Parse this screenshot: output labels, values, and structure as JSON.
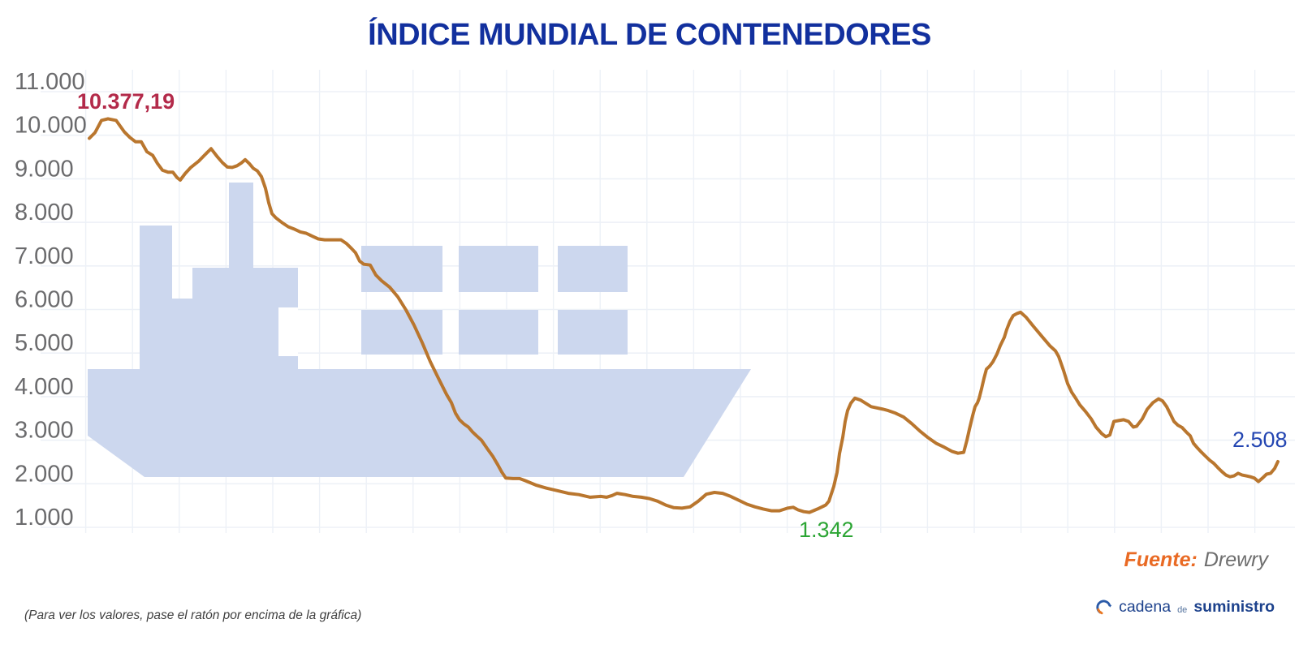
{
  "title": "ÍNDICE MUNDIAL DE CONTENEDORES",
  "footnote": "(Para ver los valores, pase el ratón por encima de la gráfica)",
  "source": {
    "label": "Fuente:",
    "value": "Drewry"
  },
  "logo": {
    "part1": "cadena",
    "part2": "de",
    "part3": "suministro",
    "icon": "circular-arrows-icon"
  },
  "colors": {
    "title_blue": "#12309e",
    "line": "#b9762e",
    "watermark_ship": "#ccd7ee",
    "grid": "#edf1f7",
    "axis_text": "#6b6b6d",
    "max_label_red": "#b32a4a",
    "min_label_green": "#2ca534",
    "last_label_blue": "#2446b2",
    "source_orange": "#e96a24",
    "logo_blue": "#1c418c",
    "background": "#ffffff"
  },
  "chart_data": {
    "type": "line",
    "title": "ÍNDICE MUNDIAL DE CONTENEDORES",
    "series_name": "Índice mundial de contenedores (WCI, Drewry)",
    "xlabel": "",
    "ylabel": "",
    "x_axis_note": "eje temporal semanal sin etiquetas visibles",
    "grid": true,
    "legend": "none",
    "ylim": [
      1000,
      11000
    ],
    "y_ticks": [
      {
        "label": "11.000",
        "value": 11000
      },
      {
        "label": "10.000",
        "value": 10000
      },
      {
        "label": "9.000",
        "value": 9000
      },
      {
        "label": "8.000",
        "value": 8000
      },
      {
        "label": "7.000",
        "value": 7000
      },
      {
        "label": "6.000",
        "value": 6000
      },
      {
        "label": "5.000",
        "value": 5000
      },
      {
        "label": "4.000",
        "value": 4000
      },
      {
        "label": "3.000",
        "value": 3000
      },
      {
        "label": "2.000",
        "value": 2000
      },
      {
        "label": "1.000",
        "value": 1000
      }
    ],
    "annotations": {
      "max": {
        "label": "10.377,19",
        "value": 10377.19
      },
      "min": {
        "label": "1.342",
        "value": 1342
      },
      "last": {
        "label": "2.508",
        "value": 2508
      }
    },
    "watermark": "silueta de barco portacontenedores",
    "points": [
      [
        0,
        9930
      ],
      [
        7,
        10060
      ],
      [
        15,
        10340
      ],
      [
        23,
        10377.19
      ],
      [
        33,
        10340
      ],
      [
        43,
        10080
      ],
      [
        50,
        9950
      ],
      [
        57,
        9850
      ],
      [
        64,
        9850
      ],
      [
        71,
        9620
      ],
      [
        78,
        9540
      ],
      [
        84,
        9350
      ],
      [
        90,
        9200
      ],
      [
        97,
        9150
      ],
      [
        103,
        9150
      ],
      [
        108,
        9030
      ],
      [
        112,
        8970
      ],
      [
        118,
        9120
      ],
      [
        125,
        9260
      ],
      [
        135,
        9410
      ],
      [
        145,
        9600
      ],
      [
        150,
        9690
      ],
      [
        158,
        9500
      ],
      [
        164,
        9370
      ],
      [
        170,
        9270
      ],
      [
        176,
        9260
      ],
      [
        182,
        9300
      ],
      [
        187,
        9360
      ],
      [
        192,
        9440
      ],
      [
        197,
        9350
      ],
      [
        202,
        9240
      ],
      [
        207,
        9180
      ],
      [
        212,
        9050
      ],
      [
        217,
        8780
      ],
      [
        221,
        8450
      ],
      [
        225,
        8200
      ],
      [
        230,
        8100
      ],
      [
        237,
        8000
      ],
      [
        245,
        7900
      ],
      [
        252,
        7850
      ],
      [
        260,
        7780
      ],
      [
        267,
        7750
      ],
      [
        275,
        7680
      ],
      [
        282,
        7620
      ],
      [
        290,
        7600
      ],
      [
        300,
        7600
      ],
      [
        310,
        7600
      ],
      [
        317,
        7510
      ],
      [
        323,
        7400
      ],
      [
        328,
        7300
      ],
      [
        333,
        7110
      ],
      [
        338,
        7040
      ],
      [
        346,
        7020
      ],
      [
        353,
        6790
      ],
      [
        360,
        6660
      ],
      [
        370,
        6510
      ],
      [
        380,
        6290
      ],
      [
        390,
        5990
      ],
      [
        400,
        5640
      ],
      [
        410,
        5240
      ],
      [
        420,
        4800
      ],
      [
        430,
        4420
      ],
      [
        440,
        4050
      ],
      [
        446,
        3860
      ],
      [
        451,
        3620
      ],
      [
        456,
        3470
      ],
      [
        461,
        3380
      ],
      [
        467,
        3300
      ],
      [
        472,
        3190
      ],
      [
        477,
        3100
      ],
      [
        483,
        3000
      ],
      [
        490,
        2810
      ],
      [
        497,
        2630
      ],
      [
        503,
        2440
      ],
      [
        508,
        2270
      ],
      [
        513,
        2130
      ],
      [
        522,
        2120
      ],
      [
        530,
        2120
      ],
      [
        537,
        2070
      ],
      [
        550,
        1970
      ],
      [
        563,
        1900
      ],
      [
        577,
        1840
      ],
      [
        590,
        1780
      ],
      [
        603,
        1750
      ],
      [
        617,
        1690
      ],
      [
        630,
        1710
      ],
      [
        637,
        1690
      ],
      [
        644,
        1730
      ],
      [
        650,
        1780
      ],
      [
        660,
        1750
      ],
      [
        670,
        1710
      ],
      [
        680,
        1690
      ],
      [
        690,
        1660
      ],
      [
        700,
        1600
      ],
      [
        710,
        1510
      ],
      [
        720,
        1450
      ],
      [
        730,
        1440
      ],
      [
        740,
        1470
      ],
      [
        750,
        1600
      ],
      [
        760,
        1760
      ],
      [
        770,
        1800
      ],
      [
        780,
        1780
      ],
      [
        790,
        1710
      ],
      [
        800,
        1620
      ],
      [
        810,
        1530
      ],
      [
        820,
        1470
      ],
      [
        830,
        1420
      ],
      [
        840,
        1380
      ],
      [
        850,
        1380
      ],
      [
        860,
        1440
      ],
      [
        867,
        1460
      ],
      [
        873,
        1400
      ],
      [
        880,
        1360
      ],
      [
        887,
        1342
      ],
      [
        897,
        1420
      ],
      [
        907,
        1510
      ],
      [
        911,
        1600
      ],
      [
        917,
        1940
      ],
      [
        921,
        2260
      ],
      [
        924,
        2690
      ],
      [
        928,
        3060
      ],
      [
        931,
        3430
      ],
      [
        934,
        3680
      ],
      [
        938,
        3850
      ],
      [
        943,
        3964
      ],
      [
        950,
        3920
      ],
      [
        963,
        3770
      ],
      [
        978,
        3710
      ],
      [
        984,
        3680
      ],
      [
        993,
        3620
      ],
      [
        1003,
        3530
      ],
      [
        1013,
        3380
      ],
      [
        1023,
        3210
      ],
      [
        1033,
        3060
      ],
      [
        1043,
        2930
      ],
      [
        1053,
        2840
      ],
      [
        1063,
        2740
      ],
      [
        1070,
        2700
      ],
      [
        1077,
        2720
      ],
      [
        1081,
        3000
      ],
      [
        1084,
        3250
      ],
      [
        1088,
        3560
      ],
      [
        1091,
        3770
      ],
      [
        1094,
        3860
      ],
      [
        1096,
        3960
      ],
      [
        1099,
        4180
      ],
      [
        1102,
        4420
      ],
      [
        1105,
        4630
      ],
      [
        1109,
        4700
      ],
      [
        1113,
        4800
      ],
      [
        1118,
        4980
      ],
      [
        1122,
        5170
      ],
      [
        1127,
        5360
      ],
      [
        1130,
        5540
      ],
      [
        1134,
        5730
      ],
      [
        1138,
        5860
      ],
      [
        1143,
        5910
      ],
      [
        1147,
        5937
      ],
      [
        1154,
        5820
      ],
      [
        1163,
        5610
      ],
      [
        1173,
        5390
      ],
      [
        1183,
        5170
      ],
      [
        1190,
        5050
      ],
      [
        1194,
        4920
      ],
      [
        1200,
        4600
      ],
      [
        1205,
        4300
      ],
      [
        1210,
        4100
      ],
      [
        1215,
        3960
      ],
      [
        1220,
        3810
      ],
      [
        1227,
        3660
      ],
      [
        1234,
        3490
      ],
      [
        1240,
        3300
      ],
      [
        1247,
        3150
      ],
      [
        1252,
        3080
      ],
      [
        1257,
        3120
      ],
      [
        1262,
        3430
      ],
      [
        1268,
        3450
      ],
      [
        1274,
        3470
      ],
      [
        1280,
        3430
      ],
      [
        1286,
        3300
      ],
      [
        1290,
        3320
      ],
      [
        1297,
        3490
      ],
      [
        1303,
        3710
      ],
      [
        1310,
        3860
      ],
      [
        1317,
        3950
      ],
      [
        1322,
        3900
      ],
      [
        1327,
        3770
      ],
      [
        1331,
        3620
      ],
      [
        1336,
        3430
      ],
      [
        1341,
        3340
      ],
      [
        1346,
        3290
      ],
      [
        1351,
        3190
      ],
      [
        1356,
        3100
      ],
      [
        1360,
        2930
      ],
      [
        1365,
        2820
      ],
      [
        1370,
        2720
      ],
      [
        1375,
        2630
      ],
      [
        1380,
        2540
      ],
      [
        1385,
        2470
      ],
      [
        1390,
        2370
      ],
      [
        1395,
        2280
      ],
      [
        1400,
        2200
      ],
      [
        1405,
        2160
      ],
      [
        1410,
        2180
      ],
      [
        1415,
        2240
      ],
      [
        1420,
        2200
      ],
      [
        1425,
        2180
      ],
      [
        1430,
        2160
      ],
      [
        1435,
        2130
      ],
      [
        1440,
        2050
      ],
      [
        1445,
        2130
      ],
      [
        1450,
        2220
      ],
      [
        1455,
        2240
      ],
      [
        1460,
        2350
      ],
      [
        1464,
        2508
      ]
    ]
  }
}
